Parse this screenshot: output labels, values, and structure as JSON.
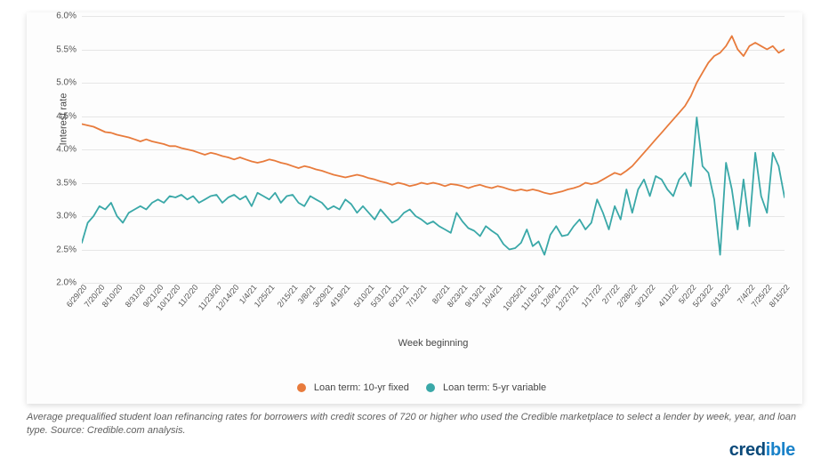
{
  "chart": {
    "type": "line",
    "background_color": "#fdfdfd",
    "grid_color": "#e6e6e6",
    "line_width": 1.8,
    "y_axis_title": "Interest rate",
    "x_axis_title": "Week beginning",
    "ylim": [
      2.0,
      6.0
    ],
    "ytick_step": 0.5,
    "yticks": [
      "2.0%",
      "2.5%",
      "3.0%",
      "3.5%",
      "4.0%",
      "4.5%",
      "5.0%",
      "5.5%",
      "6.0%"
    ],
    "xticks": [
      "6/29/20",
      "7/20/20",
      "8/10/20",
      "8/31/20",
      "9/21/20",
      "10/12/20",
      "11/2/20",
      "11/23/20",
      "12/14/20",
      "1/4/21",
      "1/25/21",
      "2/15/21",
      "3/8/21",
      "3/29/21",
      "4/19/21",
      "5/10/21",
      "5/31/21",
      "6/21/21",
      "7/12/21",
      "8/2/21",
      "8/23/21",
      "9/13/21",
      "10/4/21",
      "10/25/21",
      "11/15/21",
      "12/6/21",
      "12/27/21",
      "1/17/22",
      "2/7/22",
      "2/28/22",
      "3/21/22",
      "4/11/22",
      "5/2/22",
      "5/23/22",
      "6/13/22",
      "7/4/22",
      "7/25/22",
      "8/15/22"
    ],
    "legend": {
      "items": [
        {
          "label": "Loan term: 10-yr fixed",
          "color": "#e87b3c"
        },
        {
          "label": "Loan term: 5-yr variable",
          "color": "#3aa8a8"
        }
      ]
    },
    "series": [
      {
        "name": "Loan term: 10-yr fixed",
        "color": "#e87b3c",
        "values": [
          4.38,
          4.36,
          4.34,
          4.3,
          4.26,
          4.25,
          4.22,
          4.2,
          4.18,
          4.15,
          4.12,
          4.15,
          4.12,
          4.1,
          4.08,
          4.05,
          4.05,
          4.02,
          4.0,
          3.98,
          3.95,
          3.92,
          3.95,
          3.93,
          3.9,
          3.88,
          3.85,
          3.88,
          3.85,
          3.82,
          3.8,
          3.82,
          3.85,
          3.83,
          3.8,
          3.78,
          3.75,
          3.72,
          3.75,
          3.73,
          3.7,
          3.68,
          3.65,
          3.62,
          3.6,
          3.58,
          3.6,
          3.62,
          3.6,
          3.57,
          3.55,
          3.52,
          3.5,
          3.47,
          3.5,
          3.48,
          3.45,
          3.47,
          3.5,
          3.48,
          3.5,
          3.48,
          3.45,
          3.48,
          3.47,
          3.45,
          3.42,
          3.45,
          3.47,
          3.44,
          3.42,
          3.45,
          3.43,
          3.4,
          3.38,
          3.4,
          3.38,
          3.4,
          3.38,
          3.35,
          3.33,
          3.35,
          3.37,
          3.4,
          3.42,
          3.45,
          3.5,
          3.48,
          3.5,
          3.55,
          3.6,
          3.65,
          3.62,
          3.68,
          3.75,
          3.85,
          3.95,
          4.05,
          4.15,
          4.25,
          4.35,
          4.45,
          4.55,
          4.65,
          4.8,
          5.0,
          5.15,
          5.3,
          5.4,
          5.45,
          5.55,
          5.7,
          5.5,
          5.4,
          5.55,
          5.6,
          5.55,
          5.5,
          5.55,
          5.45,
          5.5
        ]
      },
      {
        "name": "Loan term: 5-yr variable",
        "color": "#3aa8a8",
        "values": [
          2.6,
          2.9,
          3.0,
          3.15,
          3.1,
          3.2,
          3.0,
          2.9,
          3.05,
          3.1,
          3.15,
          3.1,
          3.2,
          3.25,
          3.2,
          3.3,
          3.28,
          3.32,
          3.25,
          3.3,
          3.2,
          3.25,
          3.3,
          3.32,
          3.2,
          3.28,
          3.32,
          3.25,
          3.3,
          3.15,
          3.35,
          3.3,
          3.25,
          3.35,
          3.2,
          3.3,
          3.32,
          3.2,
          3.15,
          3.3,
          3.25,
          3.2,
          3.1,
          3.15,
          3.1,
          3.25,
          3.18,
          3.05,
          3.15,
          3.05,
          2.95,
          3.1,
          3.0,
          2.9,
          2.95,
          3.05,
          3.1,
          3.0,
          2.95,
          2.88,
          2.92,
          2.85,
          2.8,
          2.75,
          3.05,
          2.92,
          2.82,
          2.78,
          2.7,
          2.85,
          2.78,
          2.72,
          2.58,
          2.5,
          2.52,
          2.6,
          2.8,
          2.55,
          2.62,
          2.42,
          2.72,
          2.85,
          2.7,
          2.72,
          2.85,
          2.95,
          2.8,
          2.9,
          3.25,
          3.05,
          2.8,
          3.15,
          2.95,
          3.4,
          3.05,
          3.4,
          3.55,
          3.3,
          3.6,
          3.55,
          3.4,
          3.3,
          3.55,
          3.65,
          3.45,
          4.48,
          3.75,
          3.65,
          3.25,
          2.42,
          3.8,
          3.4,
          2.8,
          3.55,
          2.85,
          3.95,
          3.3,
          3.05,
          3.95,
          3.75,
          3.28
        ]
      }
    ]
  },
  "caption_text": "Average prequalified student loan refinancing rates for borrowers with credit scores of 720 or higher who used the Credible marketplace to select a lender by week, year, and loan type. Source: Credible.com analysis.",
  "brand": {
    "text": "credible",
    "color_left": "#0b4a7a",
    "color_right": "#1a82c9"
  }
}
